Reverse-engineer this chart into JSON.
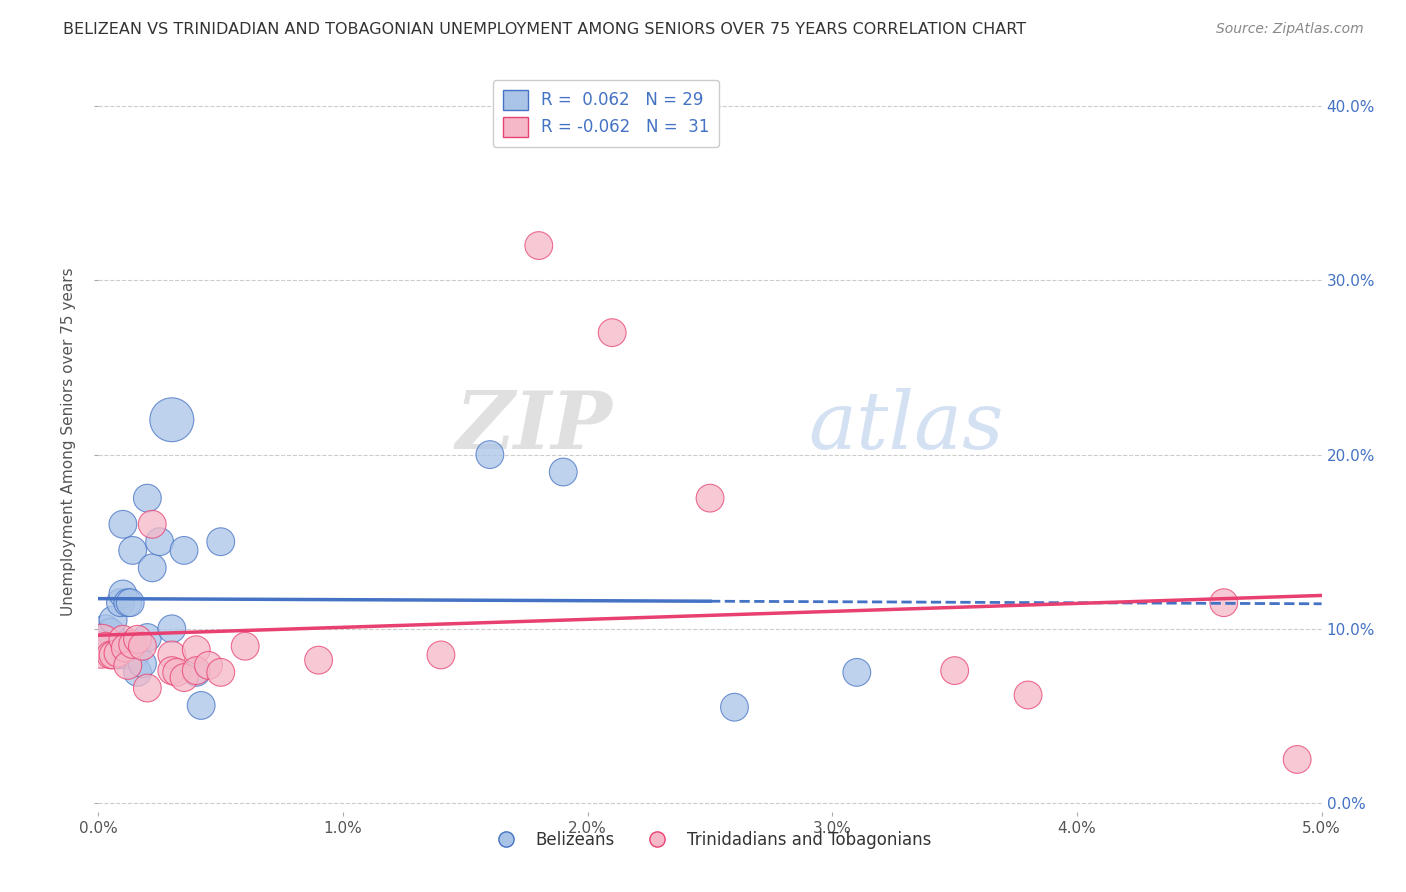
{
  "title": "BELIZEAN VS TRINIDADIAN AND TOBAGONIAN UNEMPLOYMENT AMONG SENIORS OVER 75 YEARS CORRELATION CHART",
  "source": "Source: ZipAtlas.com",
  "ylabel": "Unemployment Among Seniors over 75 years",
  "xmin": 0.0,
  "xmax": 0.05,
  "ymin": -0.005,
  "ymax": 0.42,
  "blue_R": 0.062,
  "blue_N": 29,
  "pink_R": -0.062,
  "pink_N": 31,
  "legend_labels": [
    "Belizeans",
    "Trinidadians and Tobagonians"
  ],
  "blue_color": "#aac4e8",
  "pink_color": "#f5b8c8",
  "blue_line_color": "#4472c4",
  "pink_line_color": "#e84070",
  "watermark_zip": "ZIP",
  "watermark_atlas": "atlas",
  "background_color": "#ffffff",
  "grid_color": "#cccccc",
  "blue_scatter_x": [
    0.0001,
    0.0003,
    0.0005,
    0.0006,
    0.0008,
    0.0009,
    0.001,
    0.001,
    0.0011,
    0.0012,
    0.0013,
    0.0014,
    0.0015,
    0.0016,
    0.0018,
    0.002,
    0.002,
    0.0022,
    0.0025,
    0.003,
    0.003,
    0.0035,
    0.004,
    0.0042,
    0.005,
    0.016,
    0.019,
    0.026,
    0.031
  ],
  "blue_scatter_y": [
    0.09,
    0.1,
    0.098,
    0.105,
    0.085,
    0.115,
    0.12,
    0.16,
    0.085,
    0.115,
    0.115,
    0.145,
    0.085,
    0.075,
    0.08,
    0.095,
    0.175,
    0.135,
    0.15,
    0.1,
    0.22,
    0.145,
    0.075,
    0.056,
    0.15,
    0.2,
    0.19,
    0.055,
    0.075
  ],
  "blue_scatter_size": [
    80,
    80,
    80,
    80,
    80,
    80,
    80,
    80,
    80,
    80,
    80,
    80,
    80,
    80,
    80,
    80,
    80,
    80,
    80,
    80,
    200,
    80,
    80,
    80,
    80,
    80,
    80,
    80,
    80
  ],
  "pink_scatter_x": [
    0.0001,
    0.0003,
    0.0005,
    0.0006,
    0.0008,
    0.001,
    0.0011,
    0.0012,
    0.0014,
    0.0016,
    0.0018,
    0.002,
    0.0022,
    0.003,
    0.003,
    0.0032,
    0.0035,
    0.004,
    0.004,
    0.0045,
    0.005,
    0.006,
    0.009,
    0.014,
    0.018,
    0.021,
    0.025,
    0.035,
    0.038,
    0.046,
    0.049
  ],
  "pink_scatter_y": [
    0.09,
    0.09,
    0.085,
    0.085,
    0.086,
    0.094,
    0.089,
    0.079,
    0.091,
    0.094,
    0.09,
    0.066,
    0.16,
    0.085,
    0.076,
    0.075,
    0.072,
    0.088,
    0.076,
    0.079,
    0.075,
    0.09,
    0.082,
    0.085,
    0.32,
    0.27,
    0.175,
    0.076,
    0.062,
    0.115,
    0.025
  ],
  "pink_scatter_size": [
    200,
    80,
    80,
    80,
    80,
    80,
    80,
    80,
    80,
    80,
    80,
    80,
    80,
    80,
    80,
    80,
    80,
    80,
    80,
    80,
    80,
    80,
    80,
    80,
    80,
    80,
    80,
    80,
    80,
    80,
    80
  ]
}
